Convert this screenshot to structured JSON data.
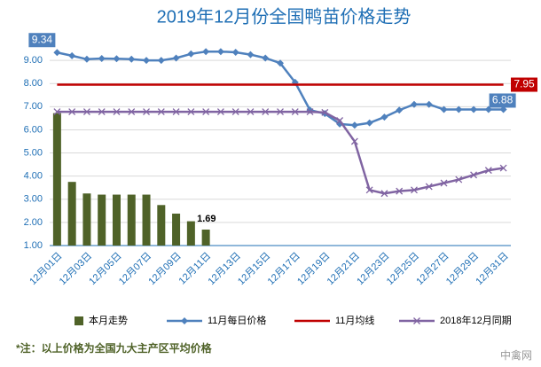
{
  "chart_data": {
    "type": "combo",
    "title": "2019年12月份全国鸭苗价格走势",
    "note": "*注：以上价格为全国九大主产区平均价格",
    "watermark": "中禽网",
    "categories": [
      "12月01日",
      null,
      "12月03日",
      null,
      "12月05日",
      null,
      "12月07日",
      null,
      "12月09日",
      null,
      "12月11日",
      null,
      "12月13日",
      null,
      "12月15日",
      null,
      "12月17日",
      null,
      "12月19日",
      null,
      "12月21日",
      null,
      "12月23日",
      null,
      "12月25日",
      null,
      "12月27日",
      null,
      "12月29日",
      null,
      "12月31日"
    ],
    "ylim": [
      1,
      10
    ],
    "yticks": [
      {
        "value": 1,
        "label": "1.00"
      },
      {
        "value": 2,
        "label": "2.00"
      },
      {
        "value": 3,
        "label": "3.00"
      },
      {
        "value": 4,
        "label": "4.00"
      },
      {
        "value": 5,
        "label": "5.00"
      },
      {
        "value": 6,
        "label": "6.00"
      },
      {
        "value": 7,
        "label": "7.00"
      },
      {
        "value": 8,
        "label": "8.00"
      },
      {
        "value": 9,
        "label": "9.00"
      }
    ],
    "grid": true,
    "series": [
      {
        "name": "本月走势",
        "type": "bar",
        "color": "#4f6228",
        "values": [
          6.72,
          3.75,
          3.25,
          3.2,
          3.2,
          3.2,
          3.2,
          2.75,
          2.38,
          2.05,
          1.69,
          null,
          null,
          null,
          null,
          null,
          null,
          null,
          null,
          null,
          null,
          null,
          null,
          null,
          null,
          null,
          null,
          null,
          null,
          null,
          null
        ]
      },
      {
        "name": "11月每日价格",
        "type": "line",
        "marker": "diamond",
        "color": "#4f81bd",
        "values": [
          9.34,
          9.2,
          9.05,
          9.08,
          9.07,
          9.05,
          9.0,
          9.0,
          9.1,
          9.28,
          9.38,
          9.38,
          9.35,
          9.25,
          9.1,
          8.88,
          8.05,
          6.85,
          6.7,
          6.25,
          6.2,
          6.3,
          6.55,
          6.85,
          7.1,
          7.1,
          6.88,
          6.88,
          6.88,
          6.88,
          6.88
        ]
      },
      {
        "name": "11月均线",
        "type": "line",
        "color": "#c00000",
        "values": [
          7.95,
          7.95,
          7.95,
          7.95,
          7.95,
          7.95,
          7.95,
          7.95,
          7.95,
          7.95,
          7.95,
          7.95,
          7.95,
          7.95,
          7.95,
          7.95,
          7.95,
          7.95,
          7.95,
          7.95,
          7.95,
          7.95,
          7.95,
          7.95,
          7.95,
          7.95,
          7.95,
          7.95,
          7.95,
          7.95,
          7.95
        ]
      },
      {
        "name": "2018年12月同期",
        "type": "line",
        "marker": "x",
        "color": "#8064a2",
        "values": [
          6.78,
          6.78,
          6.78,
          6.78,
          6.78,
          6.78,
          6.78,
          6.78,
          6.78,
          6.78,
          6.78,
          6.78,
          6.78,
          6.78,
          6.78,
          6.78,
          6.78,
          6.78,
          6.75,
          6.4,
          5.5,
          3.4,
          3.25,
          3.35,
          3.4,
          3.55,
          3.7,
          3.85,
          4.05,
          4.25,
          4.35
        ]
      }
    ]
  }
}
